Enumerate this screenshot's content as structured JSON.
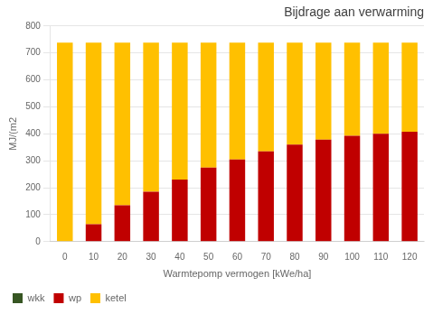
{
  "chart_data": {
    "type": "bar",
    "title": "Bijdrage aan verwarming",
    "xlabel": "Warmtepomp vermogen [kWe/ha]",
    "ylabel": "MJ/(m2",
    "categories": [
      0,
      10,
      20,
      30,
      40,
      50,
      60,
      70,
      80,
      90,
      100,
      110,
      120
    ],
    "series": [
      {
        "name": "wkk",
        "color": "#375623",
        "values": [
          0,
          0,
          0,
          0,
          0,
          0,
          0,
          0,
          0,
          0,
          0,
          0,
          0
        ]
      },
      {
        "name": "wp",
        "color": "#C00000",
        "values": [
          0,
          65,
          135,
          185,
          230,
          275,
          305,
          335,
          360,
          378,
          393,
          400,
          408
        ]
      },
      {
        "name": "ketel",
        "color": "#FFC000",
        "values": [
          738,
          673,
          603,
          553,
          508,
          463,
          433,
          403,
          378,
          360,
          345,
          338,
          330
        ]
      }
    ],
    "stacked": true,
    "ylim": [
      0,
      800
    ],
    "yticks": [
      0,
      100,
      200,
      300,
      400,
      500,
      600,
      700,
      800
    ],
    "grid": true,
    "legend": "bottom"
  }
}
